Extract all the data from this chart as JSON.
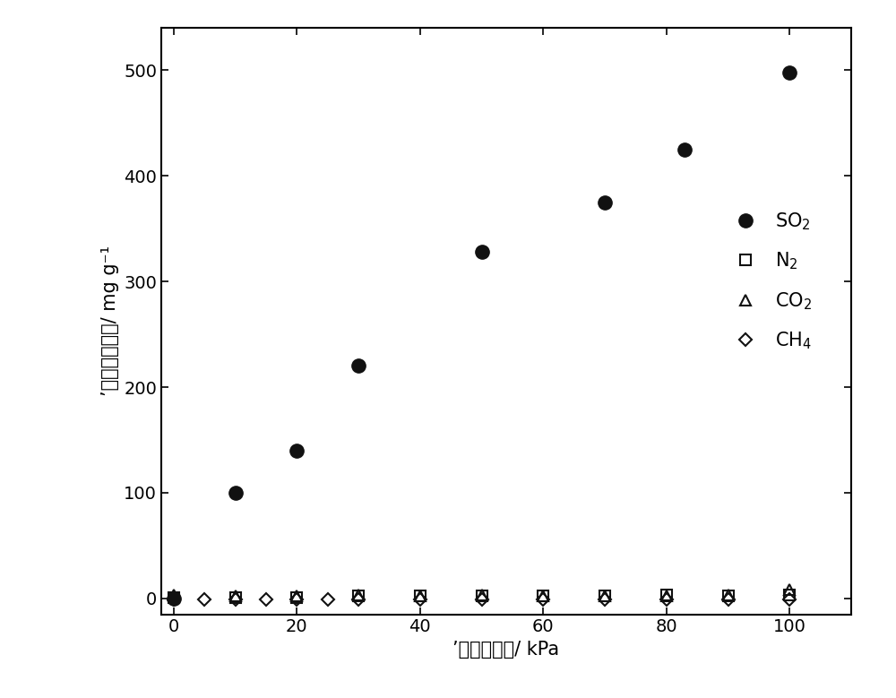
{
  "SO2_x": [
    0,
    10,
    20,
    30,
    50,
    70,
    83,
    100
  ],
  "SO2_y": [
    0,
    100,
    140,
    220,
    328,
    375,
    425,
    498
  ],
  "N2_x": [
    0,
    10,
    20,
    30,
    40,
    50,
    60,
    70,
    80,
    90,
    100
  ],
  "N2_y": [
    1,
    1,
    1,
    2,
    2,
    2,
    2,
    2,
    3,
    2,
    3
  ],
  "CO2_x": [
    0,
    10,
    20,
    30,
    40,
    50,
    60,
    70,
    80,
    90,
    100
  ],
  "CO2_y": [
    3,
    2,
    2,
    3,
    2,
    3,
    2,
    2,
    2,
    3,
    8
  ],
  "CH4_x": [
    0,
    5,
    10,
    15,
    20,
    25,
    30,
    40,
    50,
    60,
    70,
    80,
    90,
    100
  ],
  "CH4_y": [
    -1,
    -1,
    -1,
    -1,
    -1,
    -1,
    -1,
    -1,
    -1,
    -1,
    -1,
    -1,
    -1,
    -1
  ],
  "xlabel": "’（体压力）/ kPa",
  "ylabel": "’（体吸附量）/ mg g⁻¹",
  "xlim": [
    -2,
    110
  ],
  "ylim": [
    -15,
    540
  ],
  "yticks": [
    0,
    100,
    200,
    300,
    400,
    500
  ],
  "xticks": [
    0,
    20,
    40,
    60,
    80,
    100
  ],
  "legend_SO2": "SO$_2$",
  "legend_N2": "N$_2$",
  "legend_CO2": "CO$_2$",
  "legend_CH4": "CH$_4$",
  "bg_color": "#ffffff",
  "marker_color": "#111111",
  "markersize_SO2": 11,
  "markersize_others": 9,
  "legend_fontsize": 15,
  "tick_fontsize": 14,
  "label_fontsize": 15,
  "figwidth": 10.0,
  "figheight": 7.79,
  "dpi": 100
}
